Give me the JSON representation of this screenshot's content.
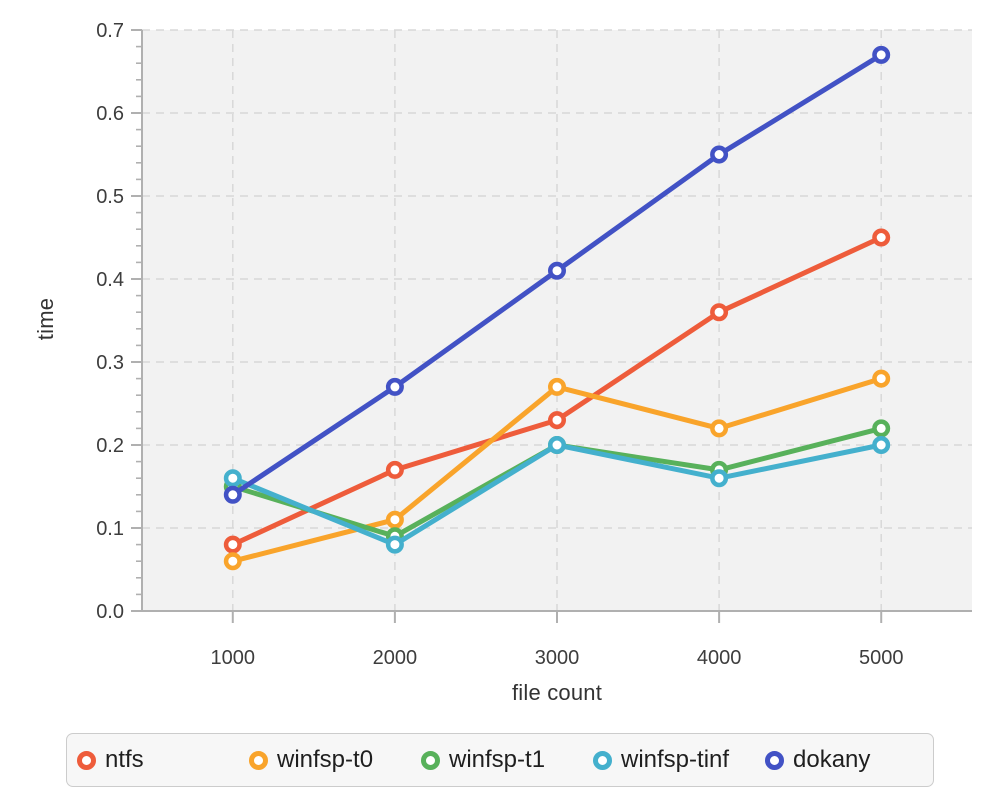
{
  "chart_data": {
    "type": "line",
    "title": "",
    "xlabel": "file count",
    "ylabel": "time",
    "x": [
      1000,
      2000,
      3000,
      4000,
      5000
    ],
    "x_tick_labels": [
      "1000",
      "2000",
      "3000",
      "4000",
      "5000"
    ],
    "y_ticks": [
      0.0,
      0.1,
      0.2,
      0.3,
      0.4,
      0.5,
      0.6,
      0.7
    ],
    "y_tick_labels": [
      "0.0",
      "0.1",
      "0.2",
      "0.3",
      "0.4",
      "0.5",
      "0.6",
      "0.7"
    ],
    "y_minor_tick_step": 0.02,
    "xlim": [
      440,
      5560
    ],
    "ylim": [
      0,
      0.7
    ],
    "grid": "dashed",
    "legend_position": "bottom",
    "marker_style": "open-circle",
    "series": [
      {
        "name": "ntfs",
        "color": "#ee5c3b",
        "values": [
          0.08,
          0.17,
          0.23,
          0.36,
          0.45
        ]
      },
      {
        "name": "winfsp-t0",
        "color": "#f9a42b",
        "values": [
          0.06,
          0.11,
          0.27,
          0.22,
          0.28
        ]
      },
      {
        "name": "winfsp-t1",
        "color": "#58b15b",
        "values": [
          0.15,
          0.09,
          0.2,
          0.17,
          0.22
        ]
      },
      {
        "name": "winfsp-tinf",
        "color": "#44b0cd",
        "values": [
          0.16,
          0.08,
          0.2,
          0.16,
          0.2
        ]
      },
      {
        "name": "dokany",
        "color": "#4252c5",
        "values": [
          0.14,
          0.27,
          0.41,
          0.55,
          0.67
        ]
      }
    ],
    "colors": {
      "plot_background": "#f2f2f2",
      "page_background": "#ffffff",
      "grid": "#d8d8d8",
      "axis": "#b0b0b0",
      "tick_text": "#3d3d3d",
      "axis_title_text": "#333333",
      "legend_background": "#f7f7f7",
      "legend_border": "#cccccc",
      "legend_text": "#1f1f1f",
      "marker_fill": "#ffffff"
    }
  }
}
